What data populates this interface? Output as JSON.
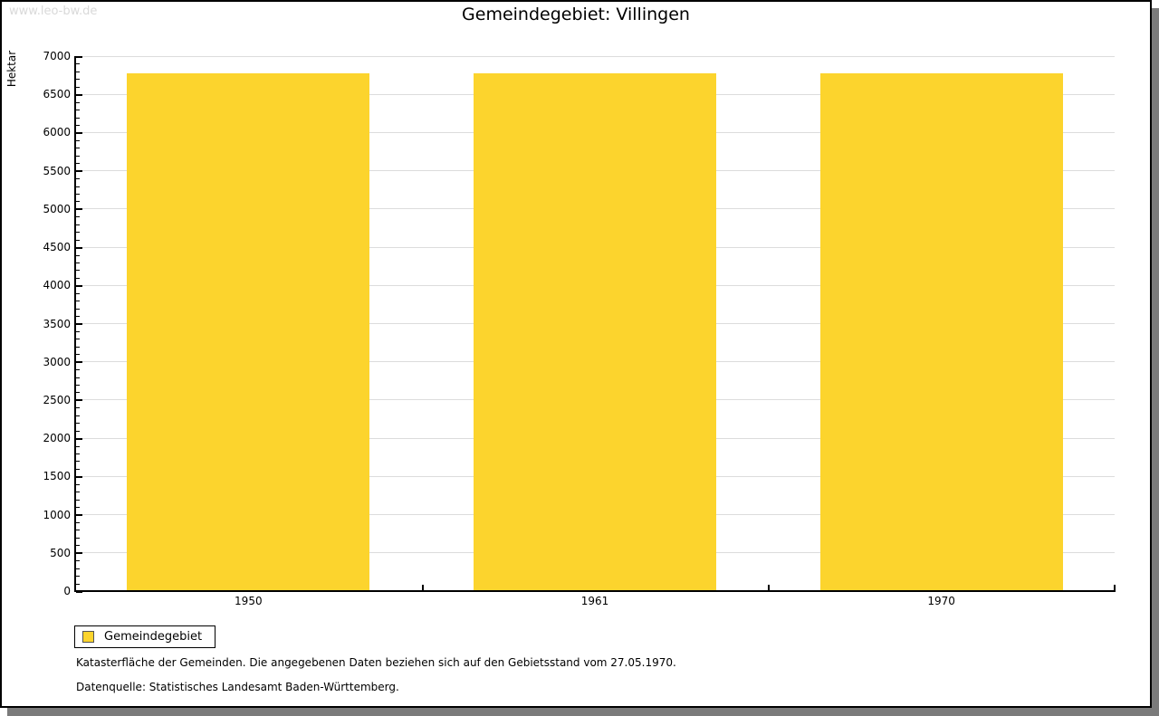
{
  "watermark": "www.leo-bw.de",
  "title": "Gemeindegebiet: Villingen",
  "chart_data": {
    "type": "bar",
    "title": "Gemeindegebiet: Villingen",
    "categories": [
      "1950",
      "1961",
      "1970"
    ],
    "series": [
      {
        "name": "Gemeindegebiet",
        "values": [
          6780,
          6780,
          6780
        ]
      }
    ],
    "xlabel": "",
    "ylabel": "Hektar",
    "ylim": [
      0,
      7000
    ],
    "yticks": [
      0,
      500,
      1000,
      1500,
      2000,
      2500,
      3000,
      3500,
      4000,
      4500,
      5000,
      5500,
      6000,
      6500,
      7000
    ],
    "ytick_step": 500,
    "minor_tick_step": 100,
    "grid": true,
    "legend_position": "bottom-left",
    "bar_color": "#FCD42D"
  },
  "legend": {
    "label": "Gemeindegebiet"
  },
  "footer": {
    "line1": "Katasterfläche der Gemeinden. Die angegebenen Daten beziehen sich auf den Gebietsstand vom 27.05.1970.",
    "line2": "Datenquelle: Statistisches Landesamt Baden-Württemberg."
  },
  "colors": {
    "bar": "#FCD42D",
    "grid": "#DCDCDC",
    "watermark": "#D9D9D9",
    "shadow": "#7B7B7B",
    "text": "#000000"
  }
}
